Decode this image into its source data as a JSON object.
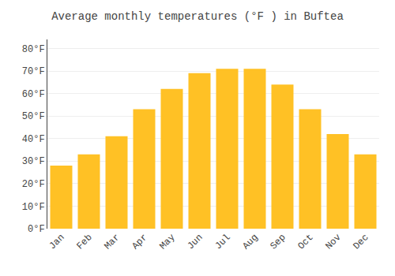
{
  "chart_data": {
    "type": "bar",
    "title": "Average monthly temperatures (°F ) in Buftea",
    "categories": [
      "Jan",
      "Feb",
      "Mar",
      "Apr",
      "May",
      "Jun",
      "Jul",
      "Aug",
      "Sep",
      "Oct",
      "Nov",
      "Dec"
    ],
    "values": [
      28,
      33,
      41,
      53,
      62,
      69,
      71,
      71,
      64,
      53,
      42,
      33
    ],
    "color": "#FFC125",
    "ylim": [
      0,
      84
    ],
    "yticks": [
      {
        "value": 0,
        "label": "0°F"
      },
      {
        "value": 10,
        "label": "10°F"
      },
      {
        "value": 20,
        "label": "20°F"
      },
      {
        "value": 30,
        "label": "30°F"
      },
      {
        "value": 40,
        "label": "40°F"
      },
      {
        "value": 50,
        "label": "50°F"
      },
      {
        "value": 60,
        "label": "60°F"
      },
      {
        "value": 70,
        "label": "70°F"
      },
      {
        "value": 80,
        "label": "80°F"
      }
    ],
    "grid": true
  }
}
